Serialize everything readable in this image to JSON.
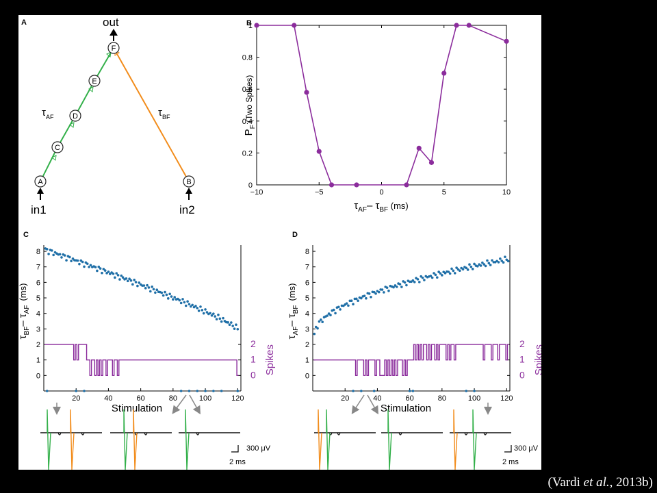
{
  "citation": {
    "prefix": "(Vardi ",
    "etal": "et al.",
    "suffix": ", 2013b)"
  },
  "colors": {
    "purple": "#8b2c9c",
    "blue": "#1f6fa7",
    "green": "#33b04a",
    "orange": "#f28c1b",
    "black": "#111111"
  },
  "panel_a": {
    "letter": "A",
    "out_label": "out",
    "in1_label": "in1",
    "in2_label": "in2",
    "tau_af_sym": "τ",
    "tau_af_sub": "AF",
    "tau_bf_sym": "τ",
    "tau_bf_sub": "BF",
    "nodes": [
      "A",
      "C",
      "D",
      "E",
      "F",
      "B"
    ]
  },
  "panel_c_letter": "C",
  "panel_d_letter": "D",
  "scalebar": {
    "voltage": "300 μV",
    "time": "2 ms"
  },
  "chart_data": [
    {
      "id": "B",
      "type": "line",
      "letter": "B",
      "ylabel_main": "P",
      "ylabel_sub": "F",
      "ylabel_rest": " (Two Spikes)",
      "xlabel_sym1": "τ",
      "xlabel_sub1": "AF",
      "xlabel_mid": "– τ",
      "xlabel_sub2": "BF",
      "xlabel_unit": " (ms)",
      "xlim": [
        -10,
        10
      ],
      "ylim": [
        0,
        1
      ],
      "xticks": [
        "−10",
        "−5",
        "0",
        "5",
        "10"
      ],
      "xtick_values": [
        -10,
        -5,
        0,
        5,
        10
      ],
      "yticks": [
        "0",
        "0.2",
        "0.4",
        "0.6",
        "0.8",
        "1"
      ],
      "ytick_values": [
        0,
        0.2,
        0.4,
        0.6,
        0.8,
        1
      ],
      "grid": false,
      "series": [
        {
          "color": "#8b2c9c",
          "x": [
            -10,
            -7,
            -6,
            -5,
            -4,
            -2,
            2,
            3,
            4,
            5,
            6,
            7,
            10
          ],
          "y": [
            1.0,
            1.0,
            0.58,
            0.21,
            0.0,
            0.0,
            0.0,
            0.23,
            0.14,
            0.7,
            1.0,
            1.0,
            0.9
          ]
        }
      ]
    },
    {
      "id": "C",
      "type": "scatter",
      "ylabel_sym1": "τ",
      "ylabel_sub1": "BF",
      "ylabel_mid": "– τ",
      "ylabel_sub2": "AF",
      "ylabel_unit": "(ms)",
      "xlabel": "Stimulation",
      "xlim": [
        0,
        122
      ],
      "ylim": [
        -1,
        8.4
      ],
      "xticks": [
        "20",
        "40",
        "60",
        "80",
        "100",
        "120"
      ],
      "xtick_values": [
        20,
        40,
        60,
        80,
        100,
        120
      ],
      "yticks": [
        "0",
        "1",
        "2",
        "3",
        "4",
        "5",
        "6",
        "7",
        "8"
      ],
      "ytick_values": [
        0,
        1,
        2,
        3,
        4,
        5,
        6,
        7,
        8
      ],
      "right_axis_label": "Spikes",
      "right_ticks": [
        "0",
        "1",
        "2"
      ],
      "latency_start": 8.1,
      "latency_end": 3.0,
      "spikes": [
        2,
        2,
        2,
        2,
        2,
        2,
        2,
        2,
        2,
        2,
        2,
        2,
        2,
        2,
        2,
        2,
        2,
        2,
        1,
        2,
        1,
        2,
        2,
        2,
        2,
        2,
        1,
        1,
        0,
        1,
        1,
        0,
        1,
        0,
        1,
        0,
        1,
        1,
        0,
        1,
        1,
        1,
        0,
        1,
        1,
        0,
        1,
        1,
        1,
        1,
        1,
        1,
        1,
        1,
        1,
        1,
        1,
        1,
        1,
        1,
        1,
        1,
        1,
        1,
        1,
        1,
        1,
        1,
        1,
        1,
        1,
        1,
        1,
        1,
        1,
        1,
        1,
        1,
        1,
        1,
        1,
        1,
        1,
        1,
        1,
        1,
        1,
        1,
        1,
        1,
        1,
        1,
        1,
        1,
        1,
        1,
        1,
        1,
        1,
        1,
        1,
        1,
        1,
        1,
        1,
        1,
        1,
        1,
        1,
        1,
        1,
        1,
        1,
        1,
        1,
        1,
        1,
        1,
        1,
        0
      ],
      "failure_marks": [
        2,
        20,
        25,
        85,
        90,
        95,
        100,
        105,
        110,
        120
      ]
    },
    {
      "id": "D",
      "type": "scatter",
      "ylabel_sym1": "τ",
      "ylabel_sub1": "AF",
      "ylabel_mid": "– τ",
      "ylabel_sub2": "BF",
      "ylabel_unit": "(ms)",
      "xlabel": "Stimulation",
      "xlim": [
        0,
        122
      ],
      "ylim": [
        -1,
        8.4
      ],
      "xticks": [
        "20",
        "40",
        "60",
        "80",
        "100",
        "120"
      ],
      "xtick_values": [
        20,
        40,
        60,
        80,
        100,
        120
      ],
      "yticks": [
        "0",
        "1",
        "2",
        "3",
        "4",
        "5",
        "6",
        "7",
        "8"
      ],
      "ytick_values": [
        0,
        1,
        2,
        3,
        4,
        5,
        6,
        7,
        8
      ],
      "right_axis_label": "Spikes",
      "right_ticks": [
        "0",
        "1",
        "2"
      ],
      "latency_start": 2.6,
      "latency_end": 7.5,
      "spikes": [
        1,
        1,
        1,
        1,
        1,
        1,
        1,
        1,
        1,
        1,
        1,
        1,
        1,
        1,
        1,
        1,
        1,
        1,
        1,
        1,
        1,
        1,
        1,
        1,
        1,
        1,
        0,
        1,
        1,
        1,
        1,
        0,
        1,
        0,
        1,
        1,
        1,
        1,
        0,
        1,
        1,
        0,
        0,
        0,
        1,
        0,
        1,
        0,
        1,
        0,
        1,
        0,
        1,
        1,
        1,
        0,
        1,
        0,
        1,
        1,
        1,
        1,
        2,
        1,
        2,
        1,
        2,
        1,
        2,
        2,
        1,
        2,
        1,
        2,
        2,
        1,
        2,
        1,
        2,
        2,
        2,
        2,
        1,
        2,
        1,
        2,
        2,
        1,
        2,
        2,
        2,
        2,
        2,
        2,
        2,
        2,
        2,
        2,
        2,
        2,
        2,
        2,
        2,
        2,
        2,
        1,
        2,
        2,
        2,
        2,
        1,
        2,
        2,
        2,
        1,
        2,
        2,
        2,
        2,
        1,
        2
      ],
      "failure_marks": [
        25,
        30,
        38,
        60,
        62,
        95,
        100
      ]
    }
  ]
}
